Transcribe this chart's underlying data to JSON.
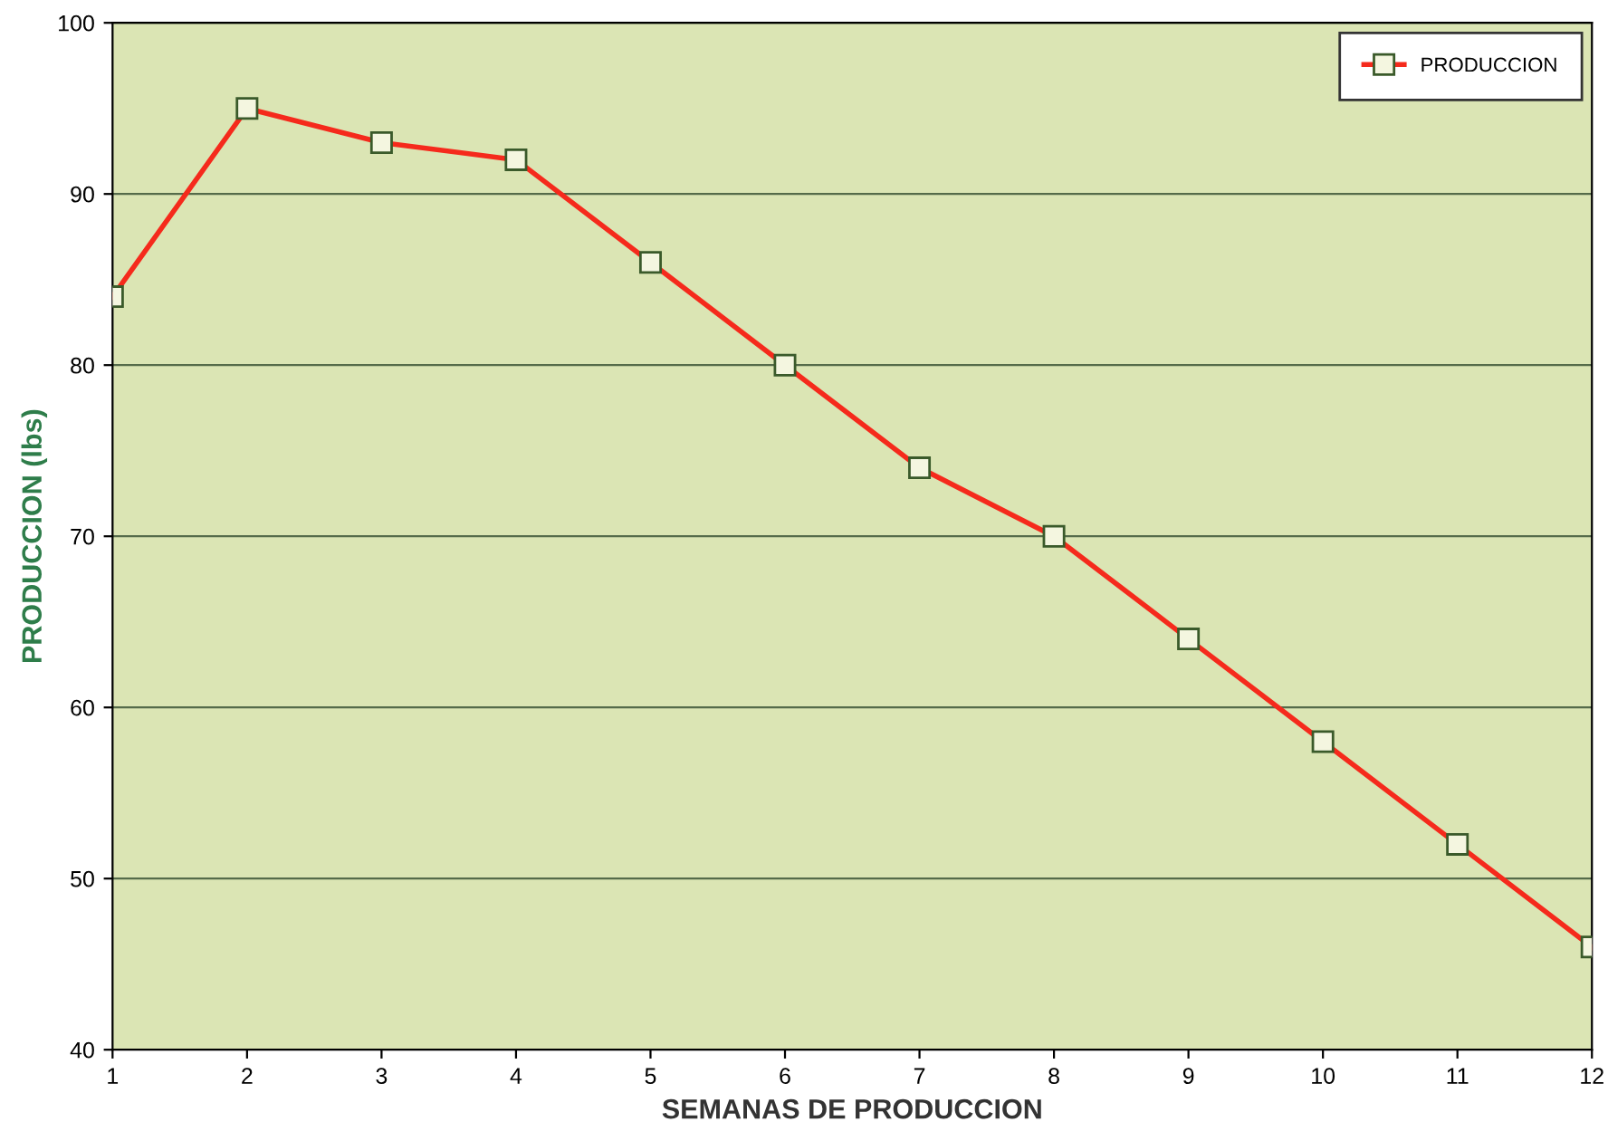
{
  "chart_data": {
    "type": "line",
    "xlabel": "SEMANAS DE PRODUCCION",
    "ylabel": "PRODUCCION (lbs)",
    "x": [
      1,
      2,
      3,
      4,
      5,
      6,
      7,
      8,
      9,
      10,
      11,
      12
    ],
    "series": [
      {
        "name": "PRODUCCION",
        "color": "#f52a1c",
        "values": [
          84,
          95,
          93,
          92,
          86,
          80,
          74,
          70,
          64,
          58,
          52,
          46
        ]
      }
    ],
    "xlim": [
      1,
      12
    ],
    "xticks": [
      1,
      2,
      3,
      4,
      5,
      6,
      7,
      8,
      9,
      10,
      11,
      12
    ],
    "ylim": [
      40,
      100
    ],
    "yticks": [
      40,
      50,
      60,
      70,
      80,
      90,
      100
    ],
    "grid": "y",
    "legend": "top right",
    "marker": "square",
    "line_style": "solid"
  }
}
